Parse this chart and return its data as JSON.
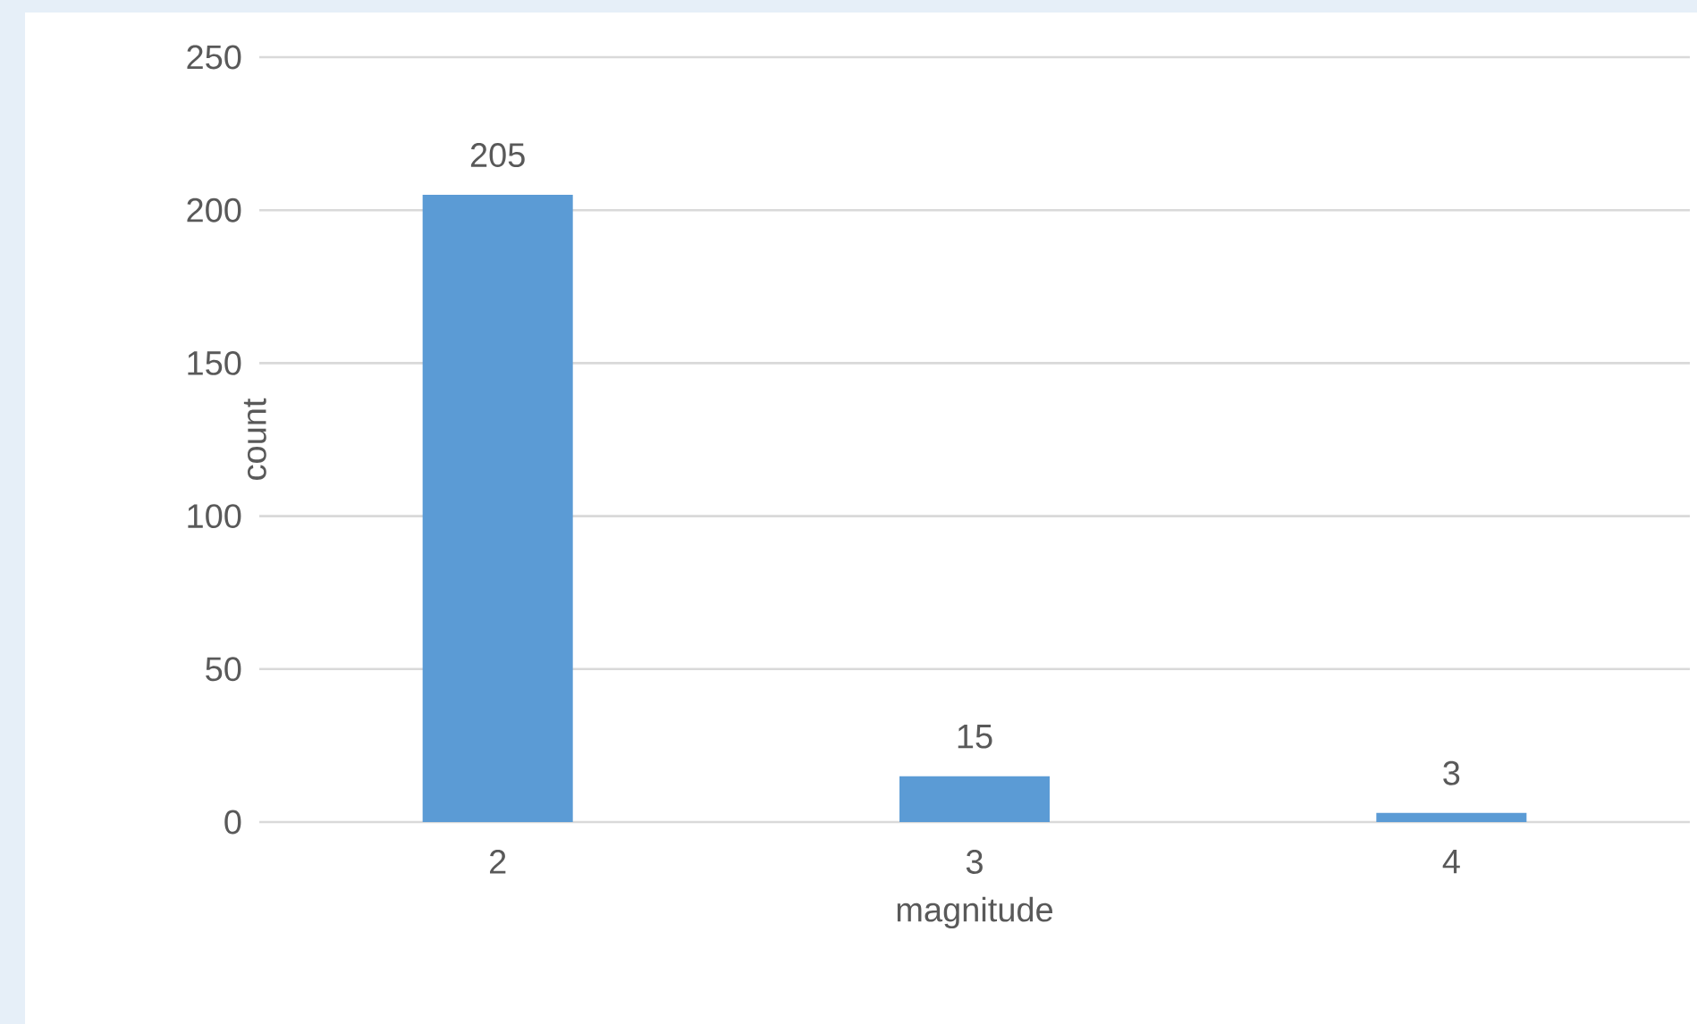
{
  "chart_data": {
    "type": "bar",
    "xlabel": "magnitude",
    "ylabel": "count",
    "categories": [
      "2",
      "3",
      "4"
    ],
    "values": [
      205,
      15,
      3
    ],
    "color": "#5b9bd5",
    "ylim": [
      0,
      250
    ],
    "yticks": [
      0,
      50,
      100,
      150,
      200,
      250
    ],
    "grid": "y",
    "data_labels": true
  }
}
